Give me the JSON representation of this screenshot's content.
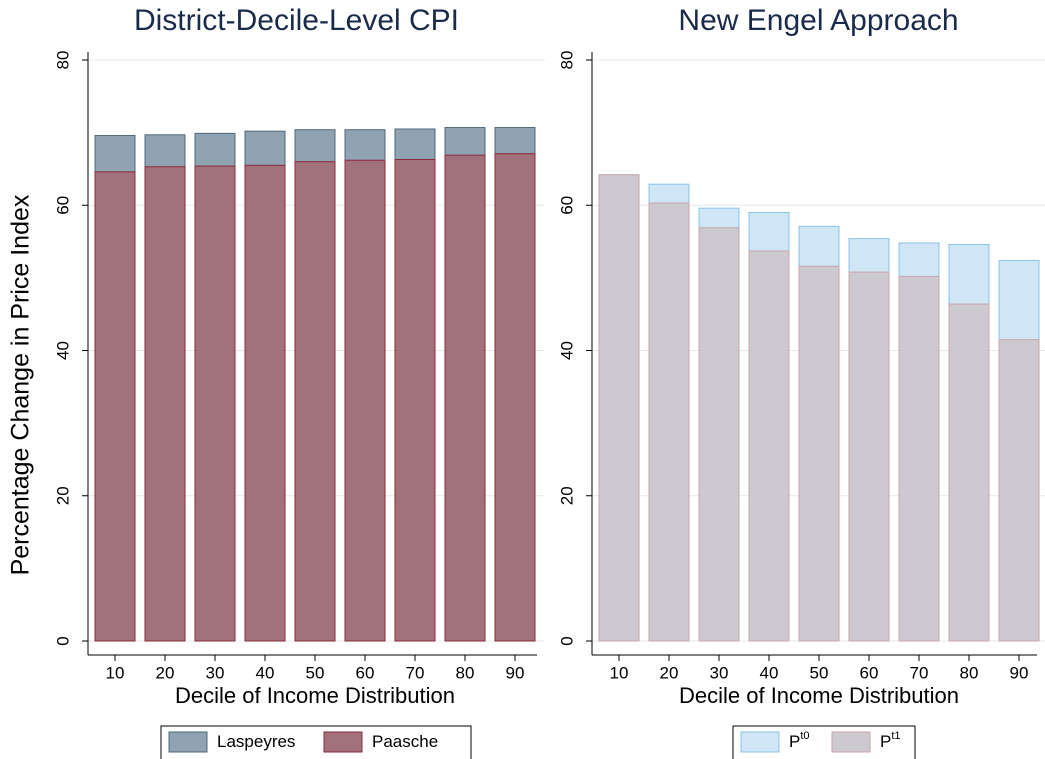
{
  "chart_data": [
    {
      "type": "bar",
      "title": "District-Decile-Level CPI",
      "x_label": "Decile of Income Distribution",
      "y_label": "Percentage Change in Price Index",
      "categories": [
        "10",
        "20",
        "30",
        "40",
        "50",
        "60",
        "70",
        "80",
        "90"
      ],
      "series": [
        {
          "name": "Laspeyres",
          "color": "#8fa3b3",
          "edge": "#50687a",
          "values": [
            69.6,
            69.7,
            69.9,
            70.2,
            70.4,
            70.4,
            70.5,
            70.7,
            70.7
          ]
        },
        {
          "name": "Paasche",
          "color": "#a1727b",
          "edge": "#8b2a3a",
          "values": [
            64.6,
            65.3,
            65.4,
            65.5,
            66.0,
            66.2,
            66.3,
            66.9,
            67.1
          ]
        }
      ],
      "ylim": [
        0,
        80
      ],
      "yticks": [
        0,
        20,
        40,
        60,
        80
      ],
      "grid": true,
      "legend": "bottom"
    },
    {
      "type": "bar",
      "title": "New Engel Approach",
      "x_label": "Decile of Income Distribution",
      "categories": [
        "10",
        "20",
        "30",
        "40",
        "50",
        "60",
        "70",
        "80",
        "90"
      ],
      "series": [
        {
          "name": "P",
          "superscript": "t0",
          "color": "#cfe6f6",
          "edge": "#8fc2e6",
          "values": [
            64.2,
            62.9,
            59.6,
            59.0,
            57.1,
            55.4,
            54.8,
            54.6,
            52.4
          ]
        },
        {
          "name": "P",
          "superscript": "t1",
          "color": "#cdc9d0",
          "edge": "#c9a6aa",
          "values": [
            64.2,
            60.3,
            56.9,
            53.7,
            51.6,
            50.8,
            50.2,
            46.4,
            41.5
          ]
        }
      ],
      "ylim": [
        0,
        80
      ],
      "yticks": [
        0,
        20,
        40,
        60,
        80
      ],
      "grid": true,
      "legend": "bottom"
    }
  ]
}
